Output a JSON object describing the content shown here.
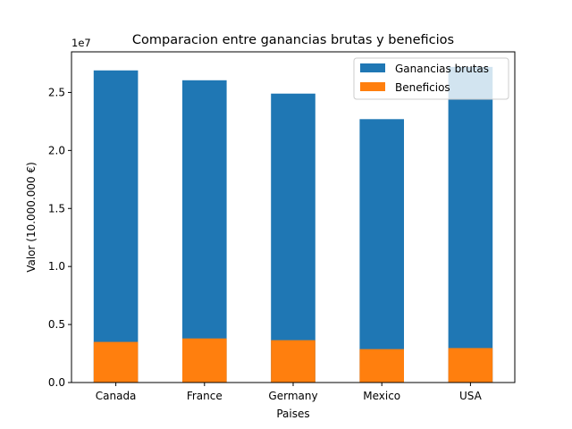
{
  "chart_data": {
    "type": "bar",
    "title": "Comparacion entre ganancias brutas y beneficios",
    "xlabel": "Paises",
    "ylabel": "Valor (10.000.000 €)",
    "offset_text": "1e7",
    "categories": [
      "Canada",
      "France",
      "Germany",
      "Mexico",
      "USA"
    ],
    "series": [
      {
        "name": "Ganancias brutas",
        "color": "#1f77b4",
        "values": [
          26900000,
          26050000,
          24900000,
          22700000,
          27200000
        ]
      },
      {
        "name": "Beneficios",
        "color": "#ff7f0e",
        "values": [
          3500000,
          3800000,
          3650000,
          2880000,
          2970000
        ]
      }
    ],
    "ylim": [
      0,
      28500000
    ],
    "yticks": [
      0,
      5000000,
      10000000,
      15000000,
      20000000,
      25000000
    ],
    "ytick_labels": [
      "0.0",
      "0.5",
      "1.0",
      "1.5",
      "2.0",
      "2.5"
    ],
    "grid": false,
    "legend_position": "top-right",
    "overlay": true
  }
}
